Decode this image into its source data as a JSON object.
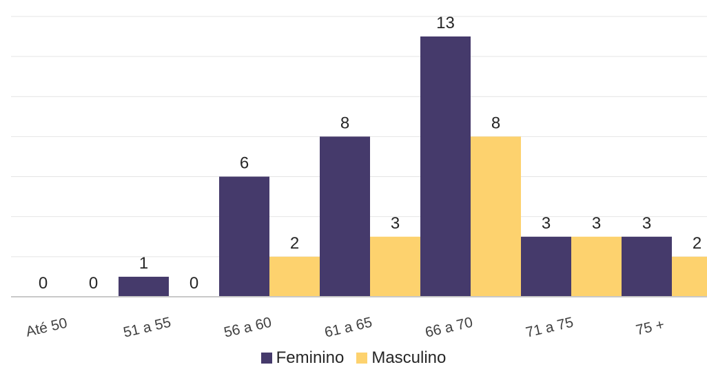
{
  "chart_data": {
    "type": "bar",
    "categories": [
      "Até 50",
      "51 a 55",
      "56 a 60",
      "61 a 65",
      "66 a 70",
      "71 a 75",
      "75 +"
    ],
    "series": [
      {
        "name": "Feminino",
        "values": [
          0,
          1,
          6,
          8,
          13,
          3,
          3
        ],
        "color": "#453A6B"
      },
      {
        "name": "Masculino",
        "values": [
          0,
          0,
          2,
          3,
          8,
          3,
          2
        ],
        "color": "#FDD26E"
      }
    ],
    "title": "",
    "xlabel": "",
    "ylabel": "",
    "ylim": [
      0,
      14
    ],
    "grid": true,
    "legend_position": "bottom",
    "data_labels": true
  }
}
